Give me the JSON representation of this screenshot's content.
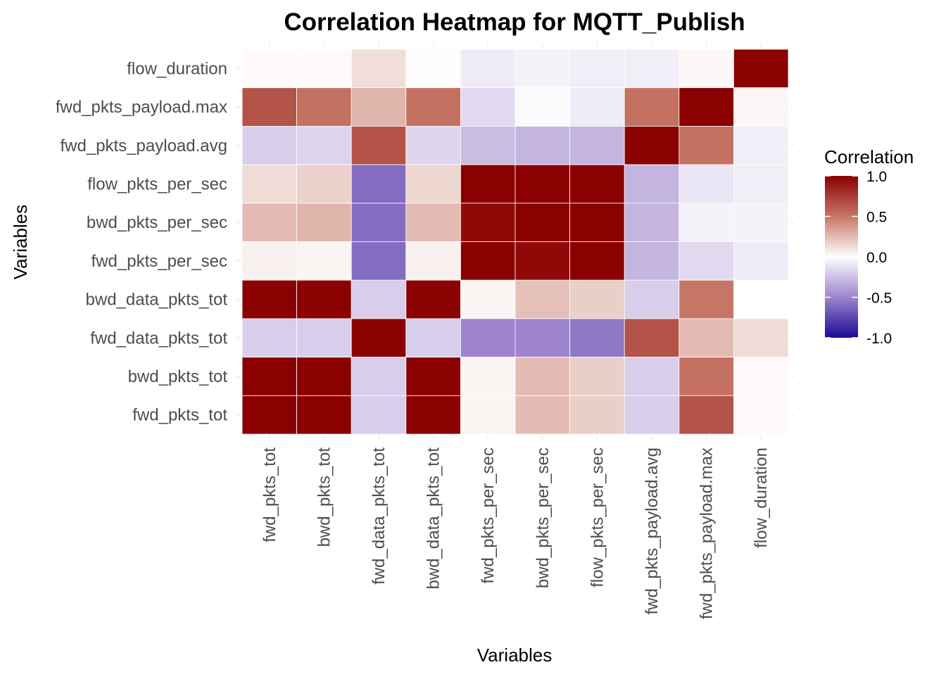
{
  "chart_data": {
    "type": "heatmap",
    "title": "Correlation Heatmap for MQTT_Publish",
    "xlabel": "Variables",
    "ylabel": "Variables",
    "legend": {
      "title": "Correlation",
      "placement": "right",
      "ticks": [
        "1.0",
        "0.5",
        "0.0",
        "-0.5",
        "-1.0"
      ],
      "tick_values": [
        1.0,
        0.5,
        0.0,
        -0.5,
        -1.0
      ],
      "colors": {
        "low": "#1a0b96",
        "mid": "#ffffff",
        "high": "#8b0000"
      },
      "range": [
        -1,
        1
      ]
    },
    "x_categories": [
      "fwd_pkts_tot",
      "bwd_pkts_tot",
      "fwd_data_pkts_tot",
      "bwd_data_pkts_tot",
      "fwd_pkts_per_sec",
      "bwd_pkts_per_sec",
      "flow_pkts_per_sec",
      "fwd_pkts_payload.avg",
      "fwd_pkts_payload.max",
      "flow_duration"
    ],
    "y_categories_top_to_bottom": [
      "flow_duration",
      "fwd_pkts_payload.max",
      "fwd_pkts_payload.avg",
      "flow_pkts_per_sec",
      "bwd_pkts_per_sec",
      "fwd_pkts_per_sec",
      "bwd_data_pkts_tot",
      "fwd_data_pkts_tot",
      "bwd_pkts_tot",
      "fwd_pkts_tot"
    ],
    "values": [
      [
        0.02,
        0.02,
        0.12,
        0.01,
        -0.08,
        -0.05,
        -0.07,
        -0.07,
        0.03,
        1.0
      ],
      [
        0.65,
        0.52,
        0.27,
        0.52,
        -0.15,
        -0.02,
        -0.08,
        0.52,
        1.0,
        0.03
      ],
      [
        -0.2,
        -0.18,
        0.65,
        -0.17,
        -0.27,
        -0.3,
        -0.3,
        1.0,
        0.52,
        -0.07
      ],
      [
        0.13,
        0.17,
        -0.6,
        0.15,
        1.0,
        1.0,
        1.0,
        -0.3,
        -0.1,
        -0.07
      ],
      [
        0.25,
        0.27,
        -0.6,
        0.25,
        0.96,
        1.0,
        1.0,
        -0.3,
        -0.05,
        -0.05
      ],
      [
        0.05,
        0.04,
        -0.6,
        0.05,
        1.0,
        0.96,
        1.0,
        -0.3,
        -0.15,
        -0.08
      ],
      [
        1.0,
        1.0,
        -0.2,
        1.0,
        0.04,
        0.23,
        0.18,
        -0.2,
        0.5,
        0.0
      ],
      [
        -0.2,
        -0.2,
        1.0,
        -0.2,
        -0.5,
        -0.5,
        -0.55,
        0.65,
        0.25,
        0.13
      ],
      [
        1.0,
        1.0,
        -0.2,
        1.0,
        0.04,
        0.25,
        0.18,
        -0.2,
        0.52,
        0.02
      ],
      [
        1.0,
        1.0,
        -0.2,
        1.0,
        0.04,
        0.25,
        0.18,
        -0.2,
        0.65,
        0.02
      ]
    ]
  }
}
